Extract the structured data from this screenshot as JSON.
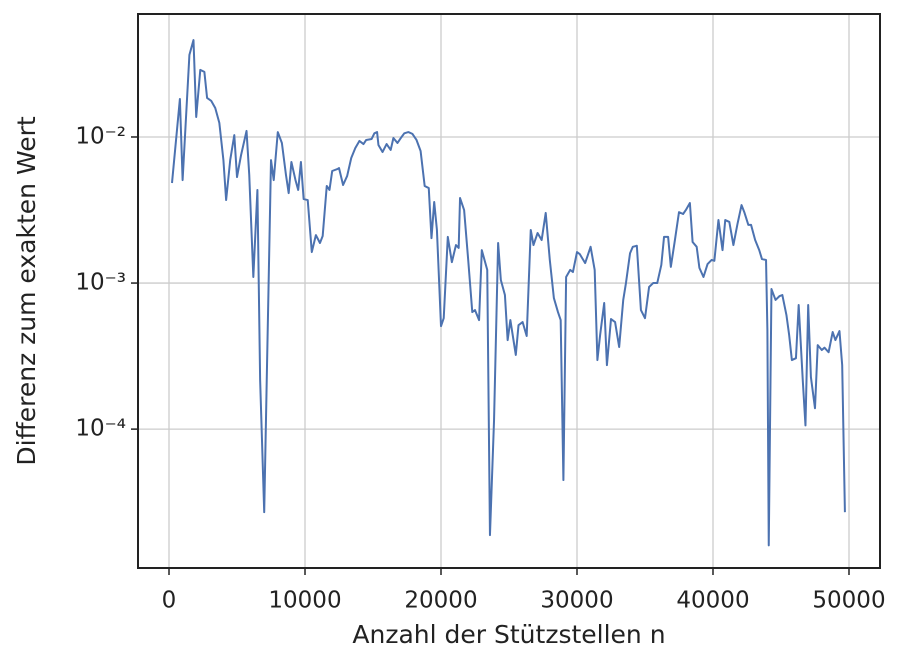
{
  "chart_data": {
    "type": "line",
    "xlabel": "Anzahl der Stützstellen n",
    "ylabel": "Differenz zum exakten Wert",
    "log_y": true,
    "grid": true,
    "xlim": [
      -2280,
      52280
    ],
    "xticks": [
      0,
      10000,
      20000,
      30000,
      40000,
      50000
    ],
    "ylim": [
      1.12e-05,
      0.0695
    ],
    "yticks": [
      {
        "value": 0.0001,
        "label": "10⁻⁴"
      },
      {
        "value": 0.001,
        "label": "10⁻³"
      },
      {
        "value": 0.01,
        "label": "10⁻²"
      }
    ],
    "x": [
      220,
      800,
      1000,
      1500,
      1800,
      2000,
      2300,
      2600,
      2800,
      3100,
      3400,
      3700,
      4000,
      4200,
      4500,
      4800,
      5000,
      5300,
      5700,
      5900,
      6200,
      6500,
      6700,
      7000,
      7200,
      7500,
      7700,
      8000,
      8300,
      8600,
      8800,
      9000,
      9300,
      9500,
      9700,
      9900,
      10200,
      10500,
      10800,
      11100,
      11300,
      11600,
      11800,
      12000,
      12400,
      12500,
      12800,
      13100,
      13400,
      13700,
      14000,
      14300,
      14500,
      14900,
      15100,
      15300,
      15400,
      15700,
      16000,
      16300,
      16500,
      16800,
      17100,
      17300,
      17600,
      17900,
      18200,
      18500,
      18800,
      19100,
      19300,
      19500,
      19700,
      20000,
      20200,
      20500,
      20800,
      21100,
      21300,
      21400,
      21700,
      22000,
      22300,
      22500,
      22800,
      23000,
      23400,
      23600,
      23900,
      24200,
      24400,
      24700,
      24900,
      25100,
      25500,
      25700,
      26000,
      26300,
      26600,
      26800,
      27100,
      27400,
      27700,
      28000,
      28300,
      28600,
      28800,
      29000,
      29200,
      29500,
      29700,
      30000,
      30200,
      30600,
      31000,
      31300,
      31500,
      31700,
      32000,
      32200,
      32500,
      32800,
      33100,
      33400,
      33600,
      33900,
      34100,
      34400,
      34700,
      35000,
      35300,
      35600,
      35900,
      36200,
      36400,
      36700,
      36900,
      37200,
      37500,
      37800,
      38000,
      38300,
      38500,
      38800,
      39000,
      39300,
      39600,
      39900,
      40100,
      40400,
      40700,
      40900,
      41200,
      41500,
      41800,
      42100,
      42300,
      42600,
      42800,
      43100,
      43400,
      43600,
      43900,
      44000,
      44100,
      44300,
      44600,
      44900,
      45100,
      45400,
      45600,
      45800,
      46100,
      46300,
      46600,
      46800,
      47000,
      47200,
      47500,
      47700,
      48000,
      48200,
      48500,
      48800,
      49000,
      49300,
      49500,
      49700
    ],
    "series": [
      {
        "color": "#4c72b0",
        "values": [
          0.00484,
          0.0182,
          0.00507,
          0.0365,
          0.0461,
          0.0137,
          0.0288,
          0.0279,
          0.0185,
          0.0177,
          0.0158,
          0.0125,
          0.00695,
          0.0037,
          0.00695,
          0.0103,
          0.00532,
          0.00753,
          0.011,
          0.0055,
          0.0011,
          0.00434,
          0.000217,
          2.7e-05,
          0.000254,
          0.00695,
          0.00507,
          0.0108,
          0.0091,
          0.0055,
          0.00413,
          0.00674,
          0.00507,
          0.00434,
          0.00674,
          0.00376,
          0.0037,
          0.00163,
          0.00213,
          0.00188,
          0.0021,
          0.00462,
          0.00434,
          0.00585,
          0.00604,
          0.00613,
          0.00469,
          0.00541,
          0.00718,
          0.00841,
          0.00939,
          0.00895,
          0.00954,
          0.00969,
          0.0106,
          0.0108,
          0.00882,
          0.00789,
          0.00895,
          0.00815,
          0.00984,
          0.0091,
          0.01,
          0.0106,
          0.0108,
          0.0105,
          0.00954,
          0.00802,
          0.00462,
          0.00447,
          0.00203,
          0.00359,
          0.00231,
          0.000507,
          0.000575,
          0.00207,
          0.00139,
          0.00182,
          0.00174,
          0.00382,
          0.00316,
          0.00144,
          0.000633,
          0.000653,
          0.000558,
          0.00168,
          0.00123,
          1.88e-05,
          0.000115,
          0.00188,
          0.00105,
          0.000828,
          0.000407,
          0.000558,
          0.000322,
          0.000515,
          0.000541,
          0.000434,
          0.00231,
          0.00182,
          0.0022,
          0.00197,
          0.00302,
          0.00144,
          0.000789,
          0.000633,
          0.000558,
          4.48e-05,
          0.0011,
          0.00123,
          0.00119,
          0.00163,
          0.00158,
          0.00137,
          0.00177,
          0.00123,
          0.000297,
          0.000441,
          0.00073,
          0.000274,
          0.000567,
          0.000541,
          0.000365,
          0.000766,
          0.001,
          0.0016,
          0.00177,
          0.0018,
          0.000653,
          0.000575,
          0.00094,
          0.001,
          0.001,
          0.00133,
          0.00207,
          0.00207,
          0.00129,
          0.00197,
          0.00306,
          0.00297,
          0.00316,
          0.00353,
          0.00191,
          0.00177,
          0.00127,
          0.0011,
          0.00135,
          0.00144,
          0.00142,
          0.0027,
          0.00168,
          0.0027,
          0.00262,
          0.00182,
          0.00254,
          0.00342,
          0.00306,
          0.0025,
          0.0025,
          0.00197,
          0.00168,
          0.00146,
          0.00144,
          0.000477,
          1.6e-05,
          0.00091,
          0.000766,
          0.000815,
          0.000828,
          0.000604,
          0.000441,
          0.000297,
          0.000306,
          0.000707,
          0.000217,
          0.000106,
          0.000707,
          0.000227,
          0.000139,
          0.000376,
          0.000348,
          0.000361,
          0.000336,
          0.000462,
          0.000407,
          0.000469,
          0.000274,
          2.7e-05
        ]
      }
    ]
  }
}
